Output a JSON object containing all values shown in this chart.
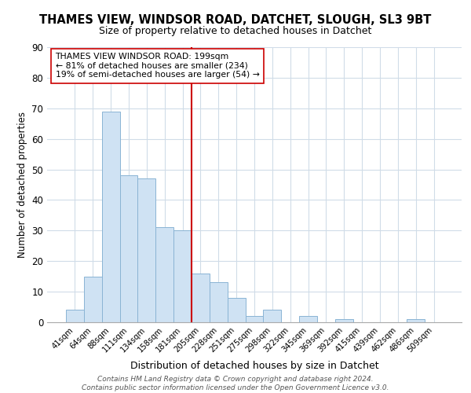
{
  "title": "THAMES VIEW, WINDSOR ROAD, DATCHET, SLOUGH, SL3 9BT",
  "subtitle": "Size of property relative to detached houses in Datchet",
  "xlabel": "Distribution of detached houses by size in Datchet",
  "ylabel": "Number of detached properties",
  "bar_labels": [
    "41sqm",
    "64sqm",
    "88sqm",
    "111sqm",
    "134sqm",
    "158sqm",
    "181sqm",
    "205sqm",
    "228sqm",
    "251sqm",
    "275sqm",
    "298sqm",
    "322sqm",
    "345sqm",
    "369sqm",
    "392sqm",
    "415sqm",
    "439sqm",
    "462sqm",
    "486sqm",
    "509sqm"
  ],
  "bar_values": [
    4,
    15,
    69,
    48,
    47,
    31,
    30,
    16,
    13,
    8,
    2,
    4,
    0,
    2,
    0,
    1,
    0,
    0,
    0,
    1,
    0
  ],
  "bar_color": "#cfe2f3",
  "bar_edge_color": "#8ab4d4",
  "vline_color": "#cc0000",
  "ylim": [
    0,
    90
  ],
  "yticks": [
    0,
    10,
    20,
    30,
    40,
    50,
    60,
    70,
    80,
    90
  ],
  "annotation_title": "THAMES VIEW WINDSOR ROAD: 199sqm",
  "annotation_line1": "← 81% of detached houses are smaller (234)",
  "annotation_line2": "19% of semi-detached houses are larger (54) →",
  "footer1": "Contains HM Land Registry data © Crown copyright and database right 2024.",
  "footer2": "Contains public sector information licensed under the Open Government Licence v3.0.",
  "background_color": "#ffffff",
  "grid_color": "#d0dce8"
}
